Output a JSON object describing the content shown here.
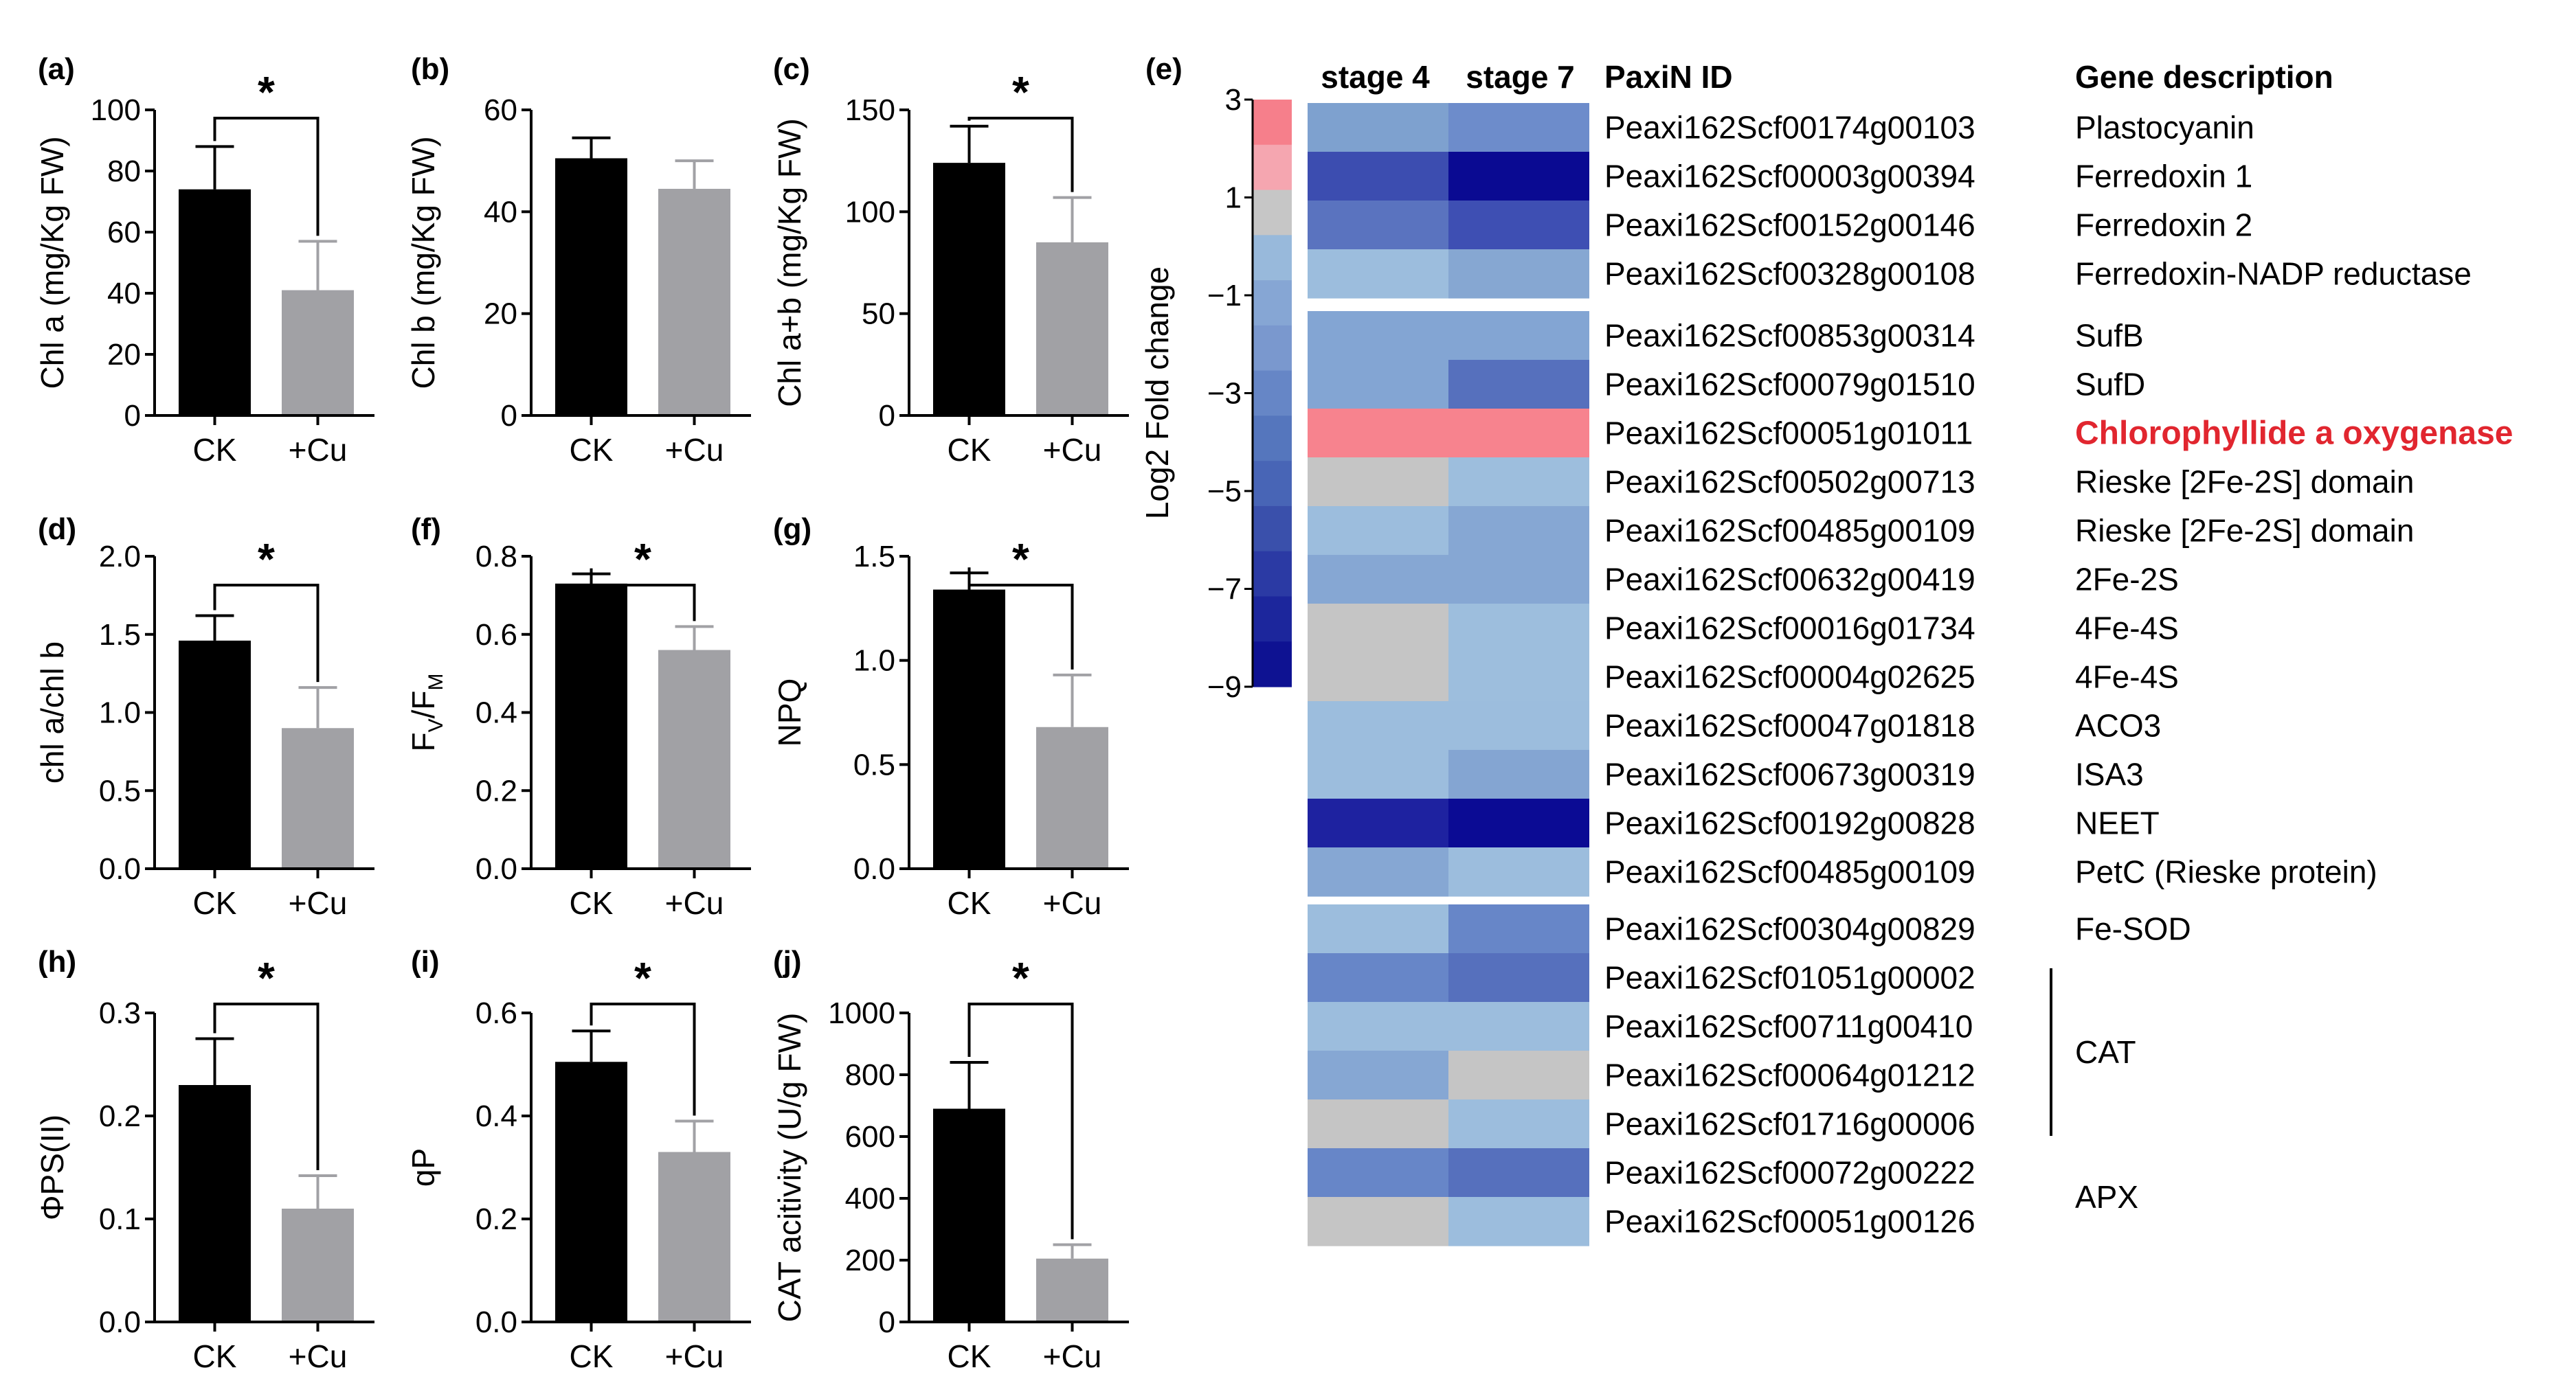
{
  "chart_data": [
    {
      "panel": "(a)",
      "type": "bar",
      "categories": [
        "CK",
        "+Cu"
      ],
      "values": [
        74,
        41
      ],
      "errors": [
        14,
        16
      ],
      "ylabel": "Chl a (mg/Kg FW)",
      "yticks": [
        "0",
        "20",
        "40",
        "60",
        "80",
        "100"
      ],
      "ylim": [
        0,
        100
      ],
      "significance": "*",
      "colors": [
        "#000000",
        "#a1a1a5"
      ]
    },
    {
      "panel": "(b)",
      "type": "bar",
      "categories": [
        "CK",
        "+Cu"
      ],
      "values": [
        50.5,
        44.5
      ],
      "errors": [
        4,
        5.5
      ],
      "ylabel": "Chl b (mg/Kg FW)",
      "yticks": [
        "0",
        "20",
        "40",
        "60"
      ],
      "ylim": [
        0,
        60
      ],
      "significance": "",
      "colors": [
        "#000000",
        "#a1a1a5"
      ]
    },
    {
      "panel": "(c)",
      "type": "bar",
      "categories": [
        "CK",
        "+Cu"
      ],
      "values": [
        124,
        85
      ],
      "errors": [
        18,
        22
      ],
      "ylabel": "Chl a+b (mg/Kg FW)",
      "yticks": [
        "0",
        "50",
        "100",
        "150"
      ],
      "ylim": [
        0,
        150
      ],
      "significance": "*",
      "colors": [
        "#000000",
        "#a1a1a5"
      ]
    },
    {
      "panel": "(d)",
      "type": "bar",
      "categories": [
        "CK",
        "+Cu"
      ],
      "values": [
        1.46,
        0.9
      ],
      "errors": [
        0.16,
        0.26
      ],
      "ylabel": "chl a/chl b",
      "yticks": [
        "0.0",
        "0.5",
        "1.0",
        "1.5",
        "2.0"
      ],
      "ylim": [
        0,
        2
      ],
      "significance": "*",
      "colors": [
        "#000000",
        "#a1a1a5"
      ]
    },
    {
      "panel": "(f)",
      "type": "bar",
      "categories": [
        "CK",
        "+Cu"
      ],
      "values": [
        0.73,
        0.56
      ],
      "errors": [
        0.025,
        0.06
      ],
      "ylabel": "FV/FM",
      "ylabel_main": "F",
      "ylabel_sub1": "V",
      "ylabel_sep": "/F",
      "ylabel_sub2": "M",
      "yticks": [
        "0.0",
        "0.2",
        "0.4",
        "0.6",
        "0.8"
      ],
      "ylim": [
        0,
        0.8
      ],
      "significance": "*",
      "colors": [
        "#000000",
        "#a1a1a5"
      ]
    },
    {
      "panel": "(g)",
      "type": "bar",
      "categories": [
        "CK",
        "+Cu"
      ],
      "values": [
        1.34,
        0.68
      ],
      "errors": [
        0.08,
        0.25
      ],
      "ylabel": "NPQ",
      "yticks": [
        "0.0",
        "0.5",
        "1.0",
        "1.5"
      ],
      "ylim": [
        0,
        1.5
      ],
      "significance": "*",
      "colors": [
        "#000000",
        "#a1a1a5"
      ]
    },
    {
      "panel": "(h)",
      "type": "bar",
      "categories": [
        "CK",
        "+Cu"
      ],
      "values": [
        0.23,
        0.11
      ],
      "errors": [
        0.045,
        0.032
      ],
      "ylabel": "ΦPS(II)",
      "yticks": [
        "0.0",
        "0.1",
        "0.2",
        "0.3"
      ],
      "ylim": [
        0,
        0.3
      ],
      "significance": "*",
      "colors": [
        "#000000",
        "#a1a1a5"
      ]
    },
    {
      "panel": "(i)",
      "type": "bar",
      "categories": [
        "CK",
        "+Cu"
      ],
      "values": [
        0.505,
        0.33
      ],
      "errors": [
        0.06,
        0.06
      ],
      "ylabel": "qP",
      "yticks": [
        "0.0",
        "0.2",
        "0.4",
        "0.6"
      ],
      "ylim": [
        0,
        0.6
      ],
      "significance": "*",
      "colors": [
        "#000000",
        "#a1a1a5"
      ]
    },
    {
      "panel": "(j)",
      "type": "bar",
      "categories": [
        "CK",
        "+Cu"
      ],
      "values": [
        690,
        205
      ],
      "errors": [
        150,
        45
      ],
      "ylabel": "CAT acitivity (U/g FW)",
      "yticks": [
        "0",
        "200",
        "400",
        "600",
        "800",
        "1000"
      ],
      "ylim": [
        0,
        1000
      ],
      "significance": "*",
      "colors": [
        "#000000",
        "#a1a1a5"
      ]
    },
    {
      "panel": "(e)",
      "type": "heatmap",
      "columns": [
        "stage 4",
        "stage 7"
      ],
      "id_header": "PaxiN ID",
      "desc_header": "Gene description",
      "colorbar_label": "Log2 Fold change",
      "colorbar_ticks": [
        "3",
        "1",
        "−1",
        "−3",
        "−5",
        "−7",
        "−9"
      ],
      "colorbar_colors": [
        "#f67f8b",
        "#f5a6b0",
        "#c6c6c6",
        "#98b9db",
        "#86a6d4",
        "#7a98ce",
        "#6686c6",
        "#5576bd",
        "#4865b6",
        "#3a50ab",
        "#2b3aa4",
        "#1c269c",
        "#0e1292"
      ],
      "rows": [
        {
          "group": 1,
          "id": "Peaxi162Scf00174g00103",
          "desc": "Plastocyanin",
          "colors": [
            "#7ea1cf",
            "#6d8ccb"
          ],
          "highlight": false
        },
        {
          "group": 1,
          "id": "Peaxi162Scf00003g00394",
          "desc": "Ferredoxin 1",
          "colors": [
            "#3c4db0",
            "#0a0a92"
          ],
          "highlight": false
        },
        {
          "group": 1,
          "id": "Peaxi162Scf00152g00146",
          "desc": "Ferredoxin 2",
          "colors": [
            "#5a73bf",
            "#3e4fb3"
          ],
          "highlight": false
        },
        {
          "group": 1,
          "id": "Peaxi162Scf00328g00108",
          "desc": "Ferredoxin-NADP reductase",
          "colors": [
            "#9cbddd",
            "#86a7d2"
          ],
          "highlight": false
        },
        {
          "group": 2,
          "id": "Peaxi162Scf00853g00314",
          "desc": "SufB",
          "colors": [
            "#83a5d3",
            "#83a5d3"
          ],
          "highlight": false
        },
        {
          "group": 2,
          "id": "Peaxi162Scf00079g01510",
          "desc": "SufD",
          "colors": [
            "#83a5d3",
            "#5670bd"
          ],
          "highlight": false
        },
        {
          "group": 2,
          "id": "Peaxi162Scf00051g01011",
          "desc": "Chlorophyllide a oxygenase",
          "colors": [
            "#f7838e",
            "#f7838e"
          ],
          "highlight": true
        },
        {
          "group": 2,
          "id": "Peaxi162Scf00502g00713",
          "desc": "Rieske [2Fe-2S] domain",
          "colors": [
            "#c5c5c5",
            "#9dbedd"
          ],
          "highlight": false
        },
        {
          "group": 2,
          "id": "Peaxi162Scf00485g00109",
          "desc": "Rieske [2Fe-2S] domain",
          "colors": [
            "#9cbddd",
            "#86a7d3"
          ],
          "highlight": false
        },
        {
          "group": 2,
          "id": "Peaxi162Scf00632g00419",
          "desc": "2Fe-2S",
          "colors": [
            "#86a7d3",
            "#86a7d3"
          ],
          "highlight": false
        },
        {
          "group": 2,
          "id": "Peaxi162Scf00016g01734",
          "desc": "4Fe-4S",
          "colors": [
            "#c5c5c5",
            "#9dbedd"
          ],
          "highlight": false
        },
        {
          "group": 2,
          "id": "Peaxi162Scf00004g02625",
          "desc": "4Fe-4S",
          "colors": [
            "#c5c5c5",
            "#9dbedd"
          ],
          "highlight": false
        },
        {
          "group": 2,
          "id": "Peaxi162Scf00047g01818",
          "desc": "ACO3",
          "colors": [
            "#9cbddd",
            "#9cbddd"
          ],
          "highlight": false
        },
        {
          "group": 2,
          "id": "Peaxi162Scf00673g00319",
          "desc": "ISA3",
          "colors": [
            "#9cbddd",
            "#84a5d2"
          ],
          "highlight": false
        },
        {
          "group": 2,
          "id": "Peaxi162Scf00192g00828",
          "desc": "NEET",
          "colors": [
            "#1e22a0",
            "#0b0b94"
          ],
          "highlight": false
        },
        {
          "group": 2,
          "id": "Peaxi162Scf00485g00109",
          "desc": "PetC (Rieske protein)",
          "colors": [
            "#86a7d3",
            "#9cbddd"
          ],
          "highlight": false
        },
        {
          "group": 3,
          "id": "Peaxi162Scf00304g00829",
          "desc": "Fe-SOD",
          "colors": [
            "#9cbddd",
            "#6786c8"
          ],
          "highlight": false
        },
        {
          "group": 3,
          "id": "Peaxi162Scf01051g00002",
          "desc": "",
          "colors": [
            "#6786c8",
            "#5670bd"
          ],
          "highlight": false
        },
        {
          "group": 3,
          "id": "Peaxi162Scf00711g00410",
          "desc": "",
          "colors": [
            "#9cbddd",
            "#9cbddd"
          ],
          "highlight": false
        },
        {
          "group": 3,
          "id": "Peaxi162Scf00064g01212",
          "desc": "",
          "colors": [
            "#86a7d3",
            "#c5c5c5"
          ],
          "highlight": false
        },
        {
          "group": 3,
          "id": "Peaxi162Scf01716g00006",
          "desc": "",
          "colors": [
            "#c5c5c5",
            "#9cbddd"
          ],
          "highlight": false
        },
        {
          "group": 3,
          "id": "Peaxi162Scf00072g00222",
          "desc": "",
          "colors": [
            "#6786c8",
            "#5670bd"
          ],
          "highlight": false
        },
        {
          "group": 3,
          "id": "Peaxi162Scf00051g00126",
          "desc": "",
          "colors": [
            "#c5c5c5",
            "#9cbddd"
          ],
          "highlight": false
        }
      ],
      "bracket_groups": [
        {
          "label": "CAT"
        },
        {
          "label": "APX"
        }
      ]
    }
  ]
}
